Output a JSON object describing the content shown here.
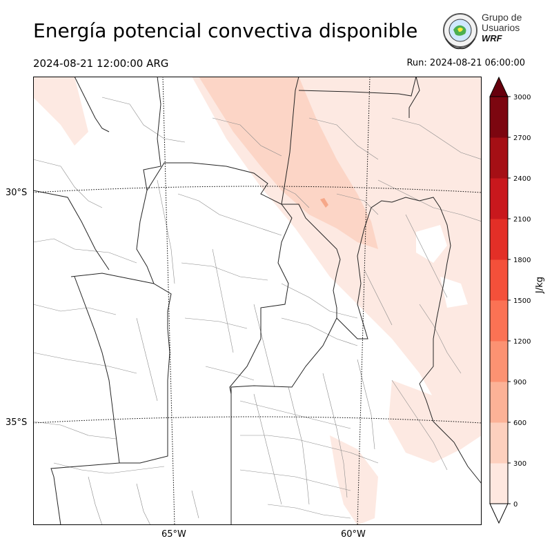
{
  "title": "Energía potencial convectiva disponible",
  "valid_time": "2024-08-21 12:00:00 ARG",
  "run": "Run: 2024-08-21 06:00:00",
  "logo": {
    "line1": "Grupo de",
    "line2": "Usuarios",
    "line3": "WRF"
  },
  "lat_labels": [
    "30°S",
    "35°S"
  ],
  "lon_labels": [
    "65°W",
    "60°W"
  ],
  "colorbar": {
    "unit": "J/kg",
    "ticks": [
      "0",
      "300",
      "600",
      "900",
      "1200",
      "1500",
      "1800",
      "2100",
      "2400",
      "2700",
      "3000"
    ],
    "colors": [
      "#fee8e0",
      "#fdd0be",
      "#fcb297",
      "#fc9272",
      "#fb7254",
      "#f4503a",
      "#e32f27",
      "#c9181d",
      "#a50f15",
      "#7c0610"
    ],
    "extend": "both",
    "over_color": "#67000d",
    "under_color": "#ffffff"
  },
  "colors": {
    "cape_light": "#fde9e2",
    "cape_mid": "#fcd5c6",
    "border": "#222222",
    "dept": "#777777"
  }
}
